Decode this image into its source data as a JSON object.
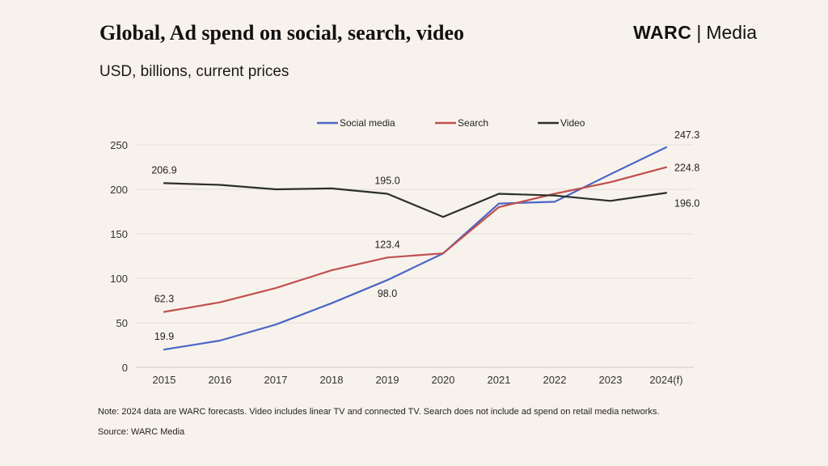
{
  "header": {
    "title": "Global, Ad spend on social, search, video",
    "subtitle": "USD, billions, current prices",
    "brand_main": "WARC",
    "brand_separator": "|",
    "brand_sub": "Media"
  },
  "footer": {
    "note": "Note: 2024 data are WARC forecasts. Video includes linear TV and connected TV. Search does not include ad spend on retail media networks.",
    "source": "Source: WARC Media"
  },
  "chart_data": {
    "type": "line",
    "title": "Global, Ad spend on social, search, video",
    "ylabel": "USD, billions, current prices",
    "xlabel": "",
    "ylim": [
      0,
      250
    ],
    "yticks": [
      0,
      50,
      100,
      150,
      200,
      250
    ],
    "grid": true,
    "legend_position": "top",
    "categories": [
      "2015",
      "2016",
      "2017",
      "2018",
      "2019",
      "2020",
      "2021",
      "2022",
      "2023",
      "2024(f)"
    ],
    "series": [
      {
        "name": "Social media",
        "color": "#4a66c8",
        "values": [
          19.9,
          30,
          48,
          72,
          98.0,
          128,
          184,
          186,
          217,
          247.3
        ],
        "labels": [
          {
            "index": 0,
            "text": "19.9",
            "position": "above"
          },
          {
            "index": 4,
            "text": "98.0",
            "position": "below"
          },
          {
            "index": 9,
            "text": "247.3",
            "position": "above"
          }
        ]
      },
      {
        "name": "Search",
        "color": "#c0504d",
        "values": [
          62.3,
          73,
          89,
          109,
          123.4,
          128,
          180,
          195,
          208,
          224.8
        ],
        "labels": [
          {
            "index": 0,
            "text": "62.3",
            "position": "above"
          },
          {
            "index": 4,
            "text": "123.4",
            "position": "above"
          },
          {
            "index": 9,
            "text": "224.8",
            "position": "right"
          }
        ]
      },
      {
        "name": "Video",
        "color": "#2b2f2b",
        "values": [
          206.9,
          205,
          200,
          201,
          195.0,
          169,
          195,
          193,
          187,
          196.0
        ],
        "labels": [
          {
            "index": 0,
            "text": "206.9",
            "position": "above"
          },
          {
            "index": 4,
            "text": "195.0",
            "position": "above"
          },
          {
            "index": 9,
            "text": "196.0",
            "position": "right"
          }
        ]
      }
    ]
  }
}
